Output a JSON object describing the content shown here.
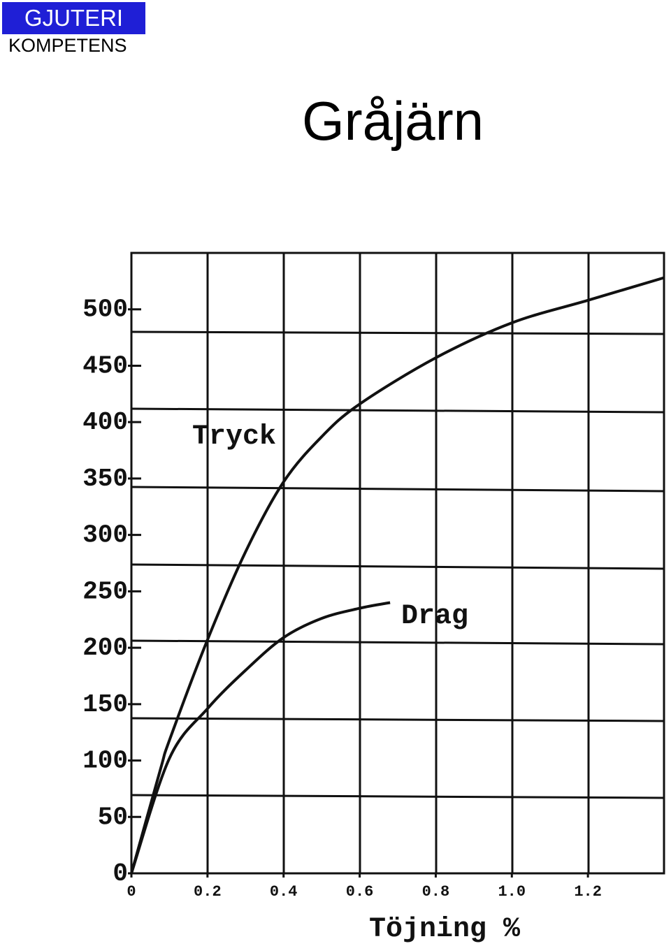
{
  "header": {
    "brand": "GJUTERI",
    "subbrand": "KOMPETENS"
  },
  "chart_data": {
    "type": "line",
    "title": "Gråjärn",
    "x_label": "Töjning %",
    "xlim": [
      0,
      1.4
    ],
    "ylim": [
      0,
      550
    ],
    "xticks": [
      {
        "value": 0,
        "label": "0"
      },
      0.2,
      0.4,
      0.6,
      0.8,
      {
        "value": 1,
        "label": "1.0"
      },
      1.2
    ],
    "yticks": [
      0,
      50,
      100,
      150,
      200,
      250,
      300,
      350,
      400,
      450,
      500
    ],
    "series": [
      {
        "name": "Tryck",
        "color": "#111111",
        "x": [
          0,
          0.077,
          0.1,
          0.2,
          0.3,
          0.4,
          0.5,
          0.6,
          0.8,
          1.0,
          1.2,
          1.4
        ],
        "values": [
          0,
          93,
          118,
          207,
          285,
          347,
          387,
          416,
          457,
          488,
          508,
          528
        ]
      },
      {
        "name": "Drag",
        "color": "#111111",
        "x": [
          0,
          0.1,
          0.2,
          0.3,
          0.4,
          0.5,
          0.6,
          0.68
        ],
        "values": [
          0,
          102,
          146,
          180,
          209,
          226,
          235,
          240
        ]
      }
    ]
  }
}
